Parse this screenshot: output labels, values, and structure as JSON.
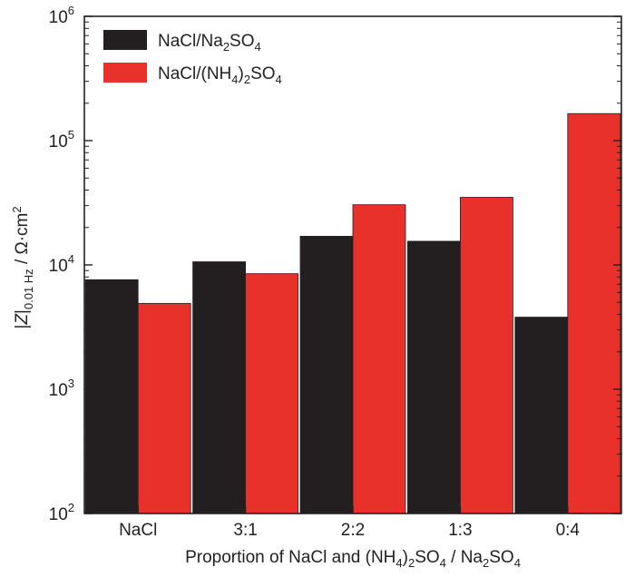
{
  "chart_data": {
    "type": "bar",
    "scale": "log",
    "ylim": [
      100,
      1000000
    ],
    "y_ticks": [
      {
        "value": 100,
        "base": "10",
        "exp": "2"
      },
      {
        "value": 1000,
        "base": "10",
        "exp": "3"
      },
      {
        "value": 10000,
        "base": "10",
        "exp": "4"
      },
      {
        "value": 100000,
        "base": "10",
        "exp": "5"
      },
      {
        "value": 1000000,
        "base": "10",
        "exp": "6"
      }
    ],
    "categories": [
      "NaCl",
      "3:1",
      "2:2",
      "1:3",
      "0:4"
    ],
    "series": [
      {
        "name": "NaCl/Na2SO4",
        "color": "#231f20",
        "values": [
          7600,
          10600,
          17000,
          15500,
          3800
        ]
      },
      {
        "name": "NaCl/(NH4)2SO4",
        "color": "#e8312a",
        "values": [
          4900,
          8500,
          30500,
          35000,
          165000
        ]
      }
    ],
    "xlabel": "Proportion of NaCl and (NH4)2SO4 / Na2SO4",
    "ylabel": "|Z|0.01 Hz / Ω·cm2",
    "legend_position": "top-left",
    "grid": false
  }
}
